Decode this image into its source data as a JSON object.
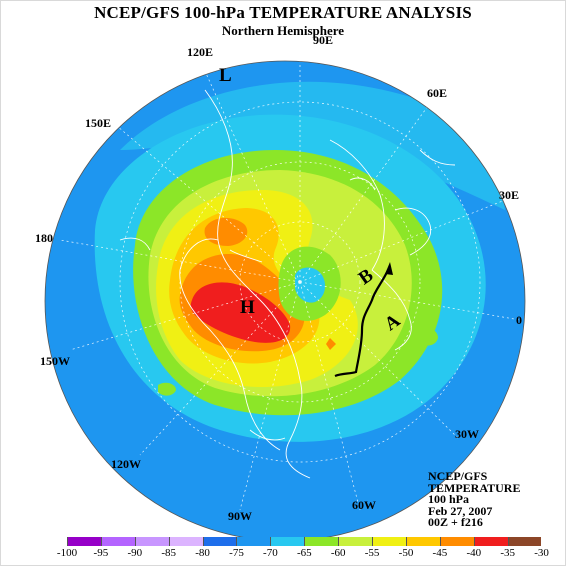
{
  "title": "NCEP/GFS 100-hPa TEMPERATURE ANALYSIS",
  "subtitle": "Northern Hemisphere",
  "longitude_labels": {
    "e120": "120E",
    "n90": "90E",
    "e60": "60E",
    "e30": "30E",
    "zero": "0",
    "e150": "150E",
    "d180": "180",
    "w150": "150W",
    "w120": "120W",
    "w90": "90W",
    "w60": "60W",
    "w30": "30W"
  },
  "markers": {
    "low": "L",
    "b": "B",
    "a": "A",
    "h": "H"
  },
  "info": {
    "line1": "NCEP/GFS",
    "line2": "TEMPERATURE",
    "line3": "100 hPa",
    "line4": "Feb 27, 2007",
    "line5": "00Z + f216"
  },
  "legend": {
    "labels": [
      "-100",
      "-95",
      "-90",
      "-85",
      "-80",
      "-75",
      "-70",
      "-65",
      "-60",
      "-55",
      "-50",
      "-45",
      "-40",
      "-35",
      "-30"
    ],
    "colors": [
      "#9600c8",
      "#b464ff",
      "#c896ff",
      "#dcb4ff",
      "#1e6eeb",
      "#1e96f0",
      "#28c8f0",
      "#8ce628",
      "#c8f03c",
      "#f0f014",
      "#ffc800",
      "#ff8c00",
      "#f01e1e",
      "#8c4628",
      "#8c8c8c"
    ]
  },
  "map": {
    "projection": "polar stereographic, northern hemisphere",
    "colors": {
      "ocean_cold": "#1e96f0",
      "cold_blue": "#1e6eeb",
      "cyan": "#28c8f0",
      "green": "#8ce628",
      "lightgreen": "#c8f03c",
      "yellow": "#f0f014",
      "orange": "#ffc800",
      "darkorange": "#ff8c00",
      "red": "#f01e1e",
      "coast": "#ffffff",
      "trajectory": "#000000"
    }
  }
}
